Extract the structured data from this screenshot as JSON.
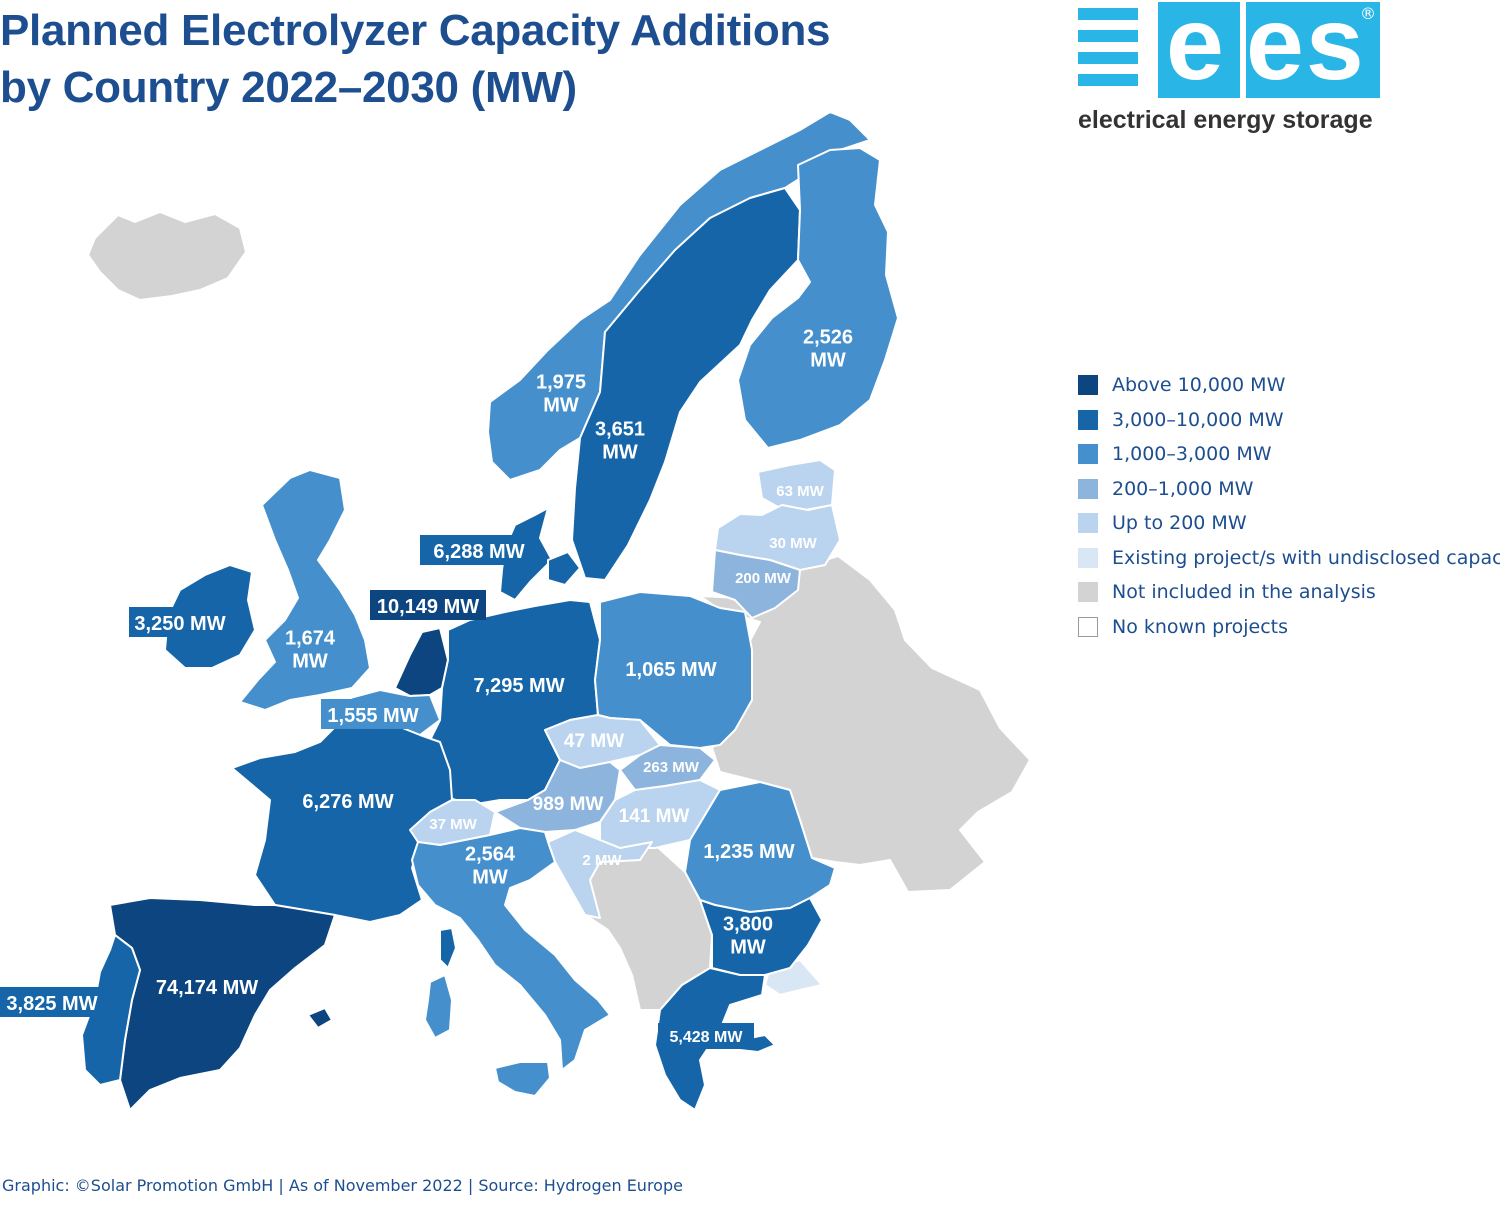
{
  "title": {
    "line1": "Planned Electrolyzer Capacity Additions",
    "line2": "by Country 2022–2030 (MW)"
  },
  "logo": {
    "brand": "ees",
    "registered": "®",
    "tagline": "electrical energy storage"
  },
  "colors": {
    "above_10000": "#0d4580",
    "c3000_10000": "#1565a8",
    "c1000_3000": "#4590cc",
    "c200_1000": "#8db4dd",
    "up_to_200": "#bad3ee",
    "existing_undisclosed": "#d9e6f4",
    "not_included": "#d3d3d3",
    "no_projects": "#ffffff"
  },
  "legend": [
    {
      "label": "Above 10,000 MW",
      "color": "#0d4580"
    },
    {
      "label": "3,000–10,000 MW",
      "color": "#1565a8"
    },
    {
      "label": "1,000–3,000 MW",
      "color": "#4590cc"
    },
    {
      "label": "200–1,000 MW",
      "color": "#8db4dd"
    },
    {
      "label": "Up to 200 MW",
      "color": "#bad3ee"
    },
    {
      "label": "Existing project/s with undisclosed capacity",
      "color": "#d9e6f4"
    },
    {
      "label": "Not included in the analysis",
      "color": "#d3d3d3"
    },
    {
      "label": "No known projects",
      "color": "#ffffff"
    }
  ],
  "labels": {
    "finland": [
      "2,526",
      "MW"
    ],
    "norway": [
      "1,975",
      "MW"
    ],
    "sweden": [
      "3,651",
      "MW"
    ],
    "estonia": "63 MW",
    "latvia": "30 MW",
    "lithuania": "200 MW",
    "denmark": "6,288 MW",
    "netherlands": "10,149 MW",
    "ireland": "3,250 MW",
    "uk": [
      "1,674",
      "MW"
    ],
    "germany": "7,295 MW",
    "poland": "1,065 MW",
    "belgium": "1,555 MW",
    "czechia": "47 MW",
    "slovakia": "263 MW",
    "austria": "989 MW",
    "hungary": "141 MW",
    "switzerland": "37 MW",
    "france": "6,276 MW",
    "romania": "1,235 MW",
    "croatia": "2 MW",
    "italy": [
      "2,564",
      "MW"
    ],
    "bulgaria": [
      "3,800",
      "MW"
    ],
    "spain": "74,174 MW",
    "portugal": "3,825 MW",
    "greece": "5,428 MW"
  },
  "footer": "Graphic: ©Solar Promotion GmbH | As of November 2022 | Source: Hydrogen Europe"
}
